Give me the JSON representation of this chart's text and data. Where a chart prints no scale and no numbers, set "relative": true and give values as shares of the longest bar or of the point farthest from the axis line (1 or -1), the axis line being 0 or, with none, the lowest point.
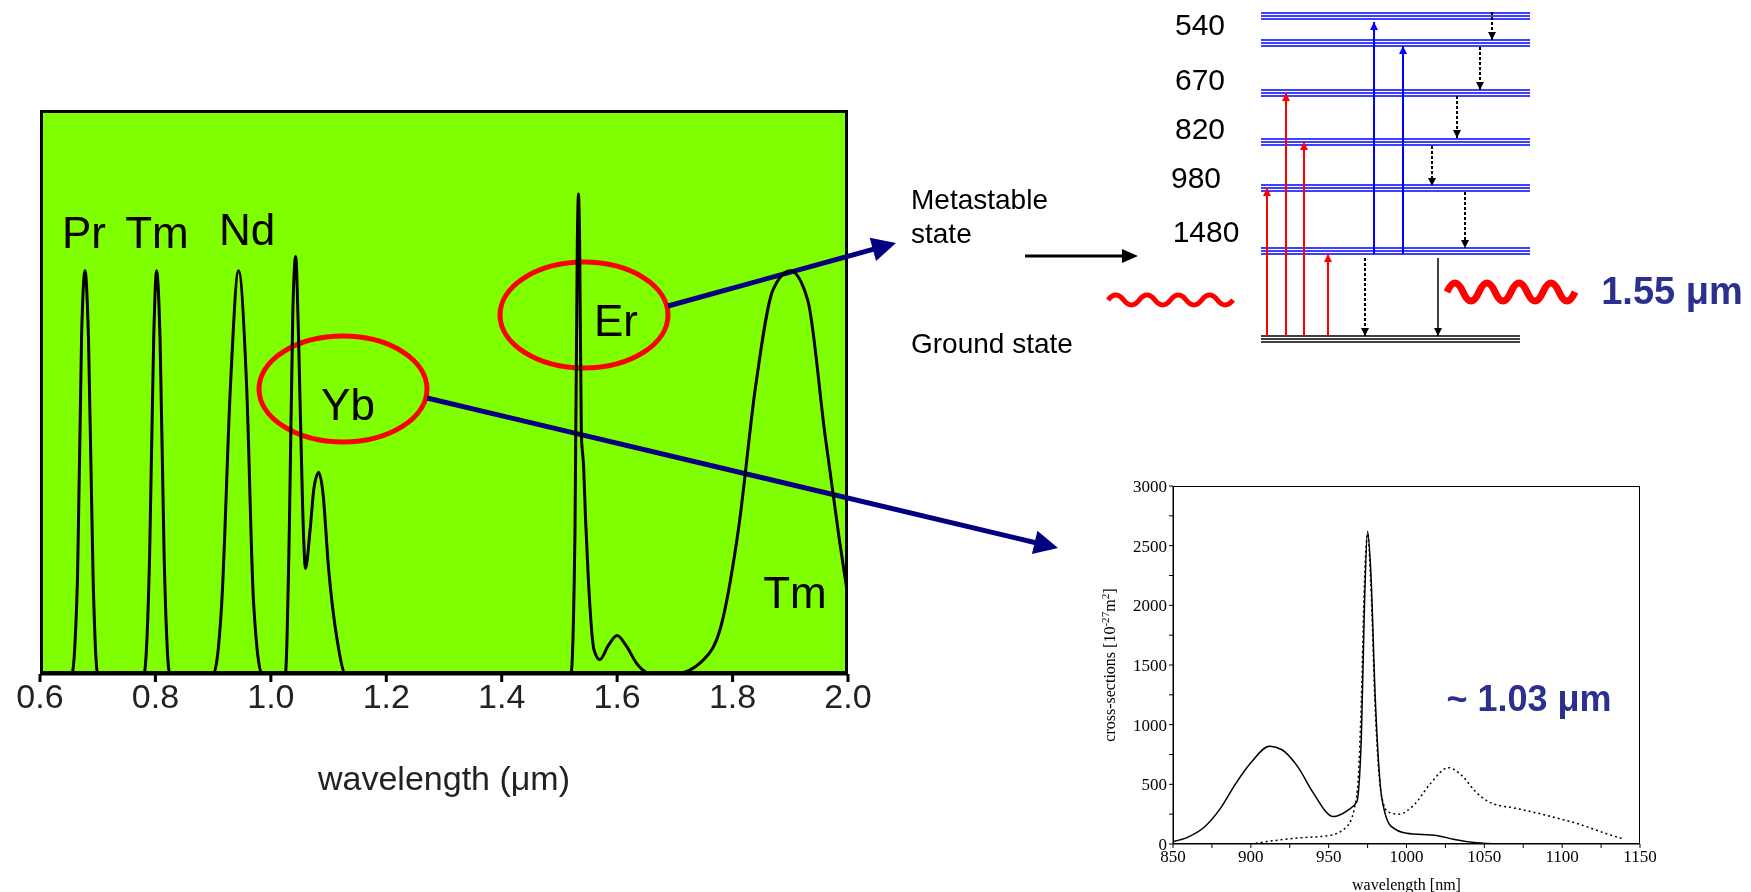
{
  "chart_data": [
    {
      "type": "line",
      "relative": true,
      "xlabel": "wavelength (μm)",
      "xlim": [
        0.6,
        2.0
      ],
      "xticks": [
        0.6,
        0.8,
        {
          "value": 1,
          "label": "1.0"
        },
        1.2,
        1.4,
        1.6,
        1.8,
        {
          "value": 2,
          "label": "2.0"
        }
      ],
      "series": [
        {
          "color": "#000000",
          "x": [
            0.6,
            0.655,
            0.665,
            0.672,
            0.678,
            0.684,
            0.692,
            0.7,
            0.78,
            0.79,
            0.797,
            0.802,
            0.808,
            0.815,
            0.825,
            0.9,
            0.915,
            0.93,
            0.944,
            0.958,
            0.97,
            0.985,
            1.025,
            1.032,
            1.038,
            1.043,
            1.048,
            1.055,
            1.06,
            1.068,
            1.075,
            1.083,
            1.09,
            1.1,
            1.115,
            1.13,
            1.52,
            1.527,
            1.531,
            1.533,
            1.535,
            1.538,
            1.542,
            1.545,
            1.55,
            1.56,
            1.57,
            1.585,
            1.6,
            1.615,
            1.635,
            1.66,
            1.7,
            1.75,
            1.78,
            1.81,
            1.84,
            1.87,
            1.9,
            1.93,
            1.96,
            1.985,
            2.0
          ],
          "values": [
            0,
            0,
            0.2,
            0.7,
            0.84,
            0.7,
            0.2,
            0,
            0,
            0.25,
            0.7,
            0.84,
            0.7,
            0.25,
            0,
            0,
            0.15,
            0.6,
            0.84,
            0.6,
            0.15,
            0,
            0,
            0.3,
            0.75,
            0.87,
            0.7,
            0.35,
            0.22,
            0.3,
            0.39,
            0.42,
            0.38,
            0.22,
            0.07,
            0,
            0,
            0.3,
            0.9,
            1,
            0.9,
            0.5,
            0.43,
            0.33,
            0.2,
            0.05,
            0.03,
            0.06,
            0.08,
            0.06,
            0.02,
            0,
            0,
            0.03,
            0.1,
            0.3,
            0.6,
            0.8,
            0.84,
            0.78,
            0.5,
            0.28,
            0.16
          ]
        }
      ],
      "annotations": [
        "Pr",
        "Tm",
        "Nd",
        "Yb",
        "Er",
        "Tm"
      ]
    },
    {
      "type": "other",
      "annotations": [
        "540",
        "670",
        "820",
        "980",
        "1480",
        "Metastable state",
        "Ground state",
        "1.55 μm"
      ]
    },
    {
      "type": "line",
      "xlabel": "wavelength [nm]",
      "ylabel": "cross-sections [10$^{-27}$m$^{2}$]",
      "xlim": [
        850,
        1150
      ],
      "ylim": [
        0,
        3000
      ],
      "xticks": [
        850,
        {
          "value": 875,
          "label": null
        },
        900,
        {
          "value": 925,
          "label": null
        },
        950,
        {
          "value": 975,
          "label": null
        },
        1000,
        {
          "value": 1025,
          "label": null
        },
        1050,
        {
          "value": 1075,
          "label": null
        },
        1100,
        {
          "value": 1125,
          "label": null
        },
        1150
      ],
      "yticks": [
        0,
        {
          "value": 250,
          "label": null
        },
        500,
        {
          "value": 750,
          "label": null
        },
        1000,
        {
          "value": 1250,
          "label": null
        },
        1500,
        {
          "value": 1750,
          "label": null
        },
        2000,
        {
          "value": 2250,
          "label": null
        },
        2500,
        {
          "value": 2750,
          "label": null
        },
        3000
      ],
      "series": [
        {
          "color": "#000000",
          "line_style": "solid",
          "x": [
            850,
            860,
            870,
            880,
            890,
            900,
            912,
            920,
            930,
            940,
            953,
            962,
            968,
            971,
            973,
            975,
            977,
            980,
            984,
            990,
            1000,
            1020,
            1030,
            1045,
            1060
          ],
          "values": [
            20,
            60,
            140,
            290,
            500,
            680,
            820,
            790,
            650,
            430,
            230,
            280,
            350,
            900,
            2000,
            2620,
            2300,
            1200,
            400,
            150,
            90,
            70,
            40,
            10,
            0
          ]
        },
        {
          "color": "#000000",
          "line_style": "dotted",
          "x": [
            900,
            910,
            930,
            950,
            962,
            968,
            971,
            973,
            975,
            977,
            980,
            984,
            988,
            995,
            1005,
            1015,
            1027,
            1035,
            1045,
            1055,
            1070,
            1090,
            1110,
            1130,
            1140
          ],
          "values": [
            0,
            20,
            50,
            70,
            150,
            400,
            1200,
            2200,
            2600,
            2200,
            1100,
            400,
            270,
            250,
            330,
            500,
            640,
            580,
            430,
            340,
            300,
            240,
            170,
            80,
            40
          ]
        }
      ],
      "annotations": [
        "~ 1.03 μm"
      ]
    }
  ]
}
